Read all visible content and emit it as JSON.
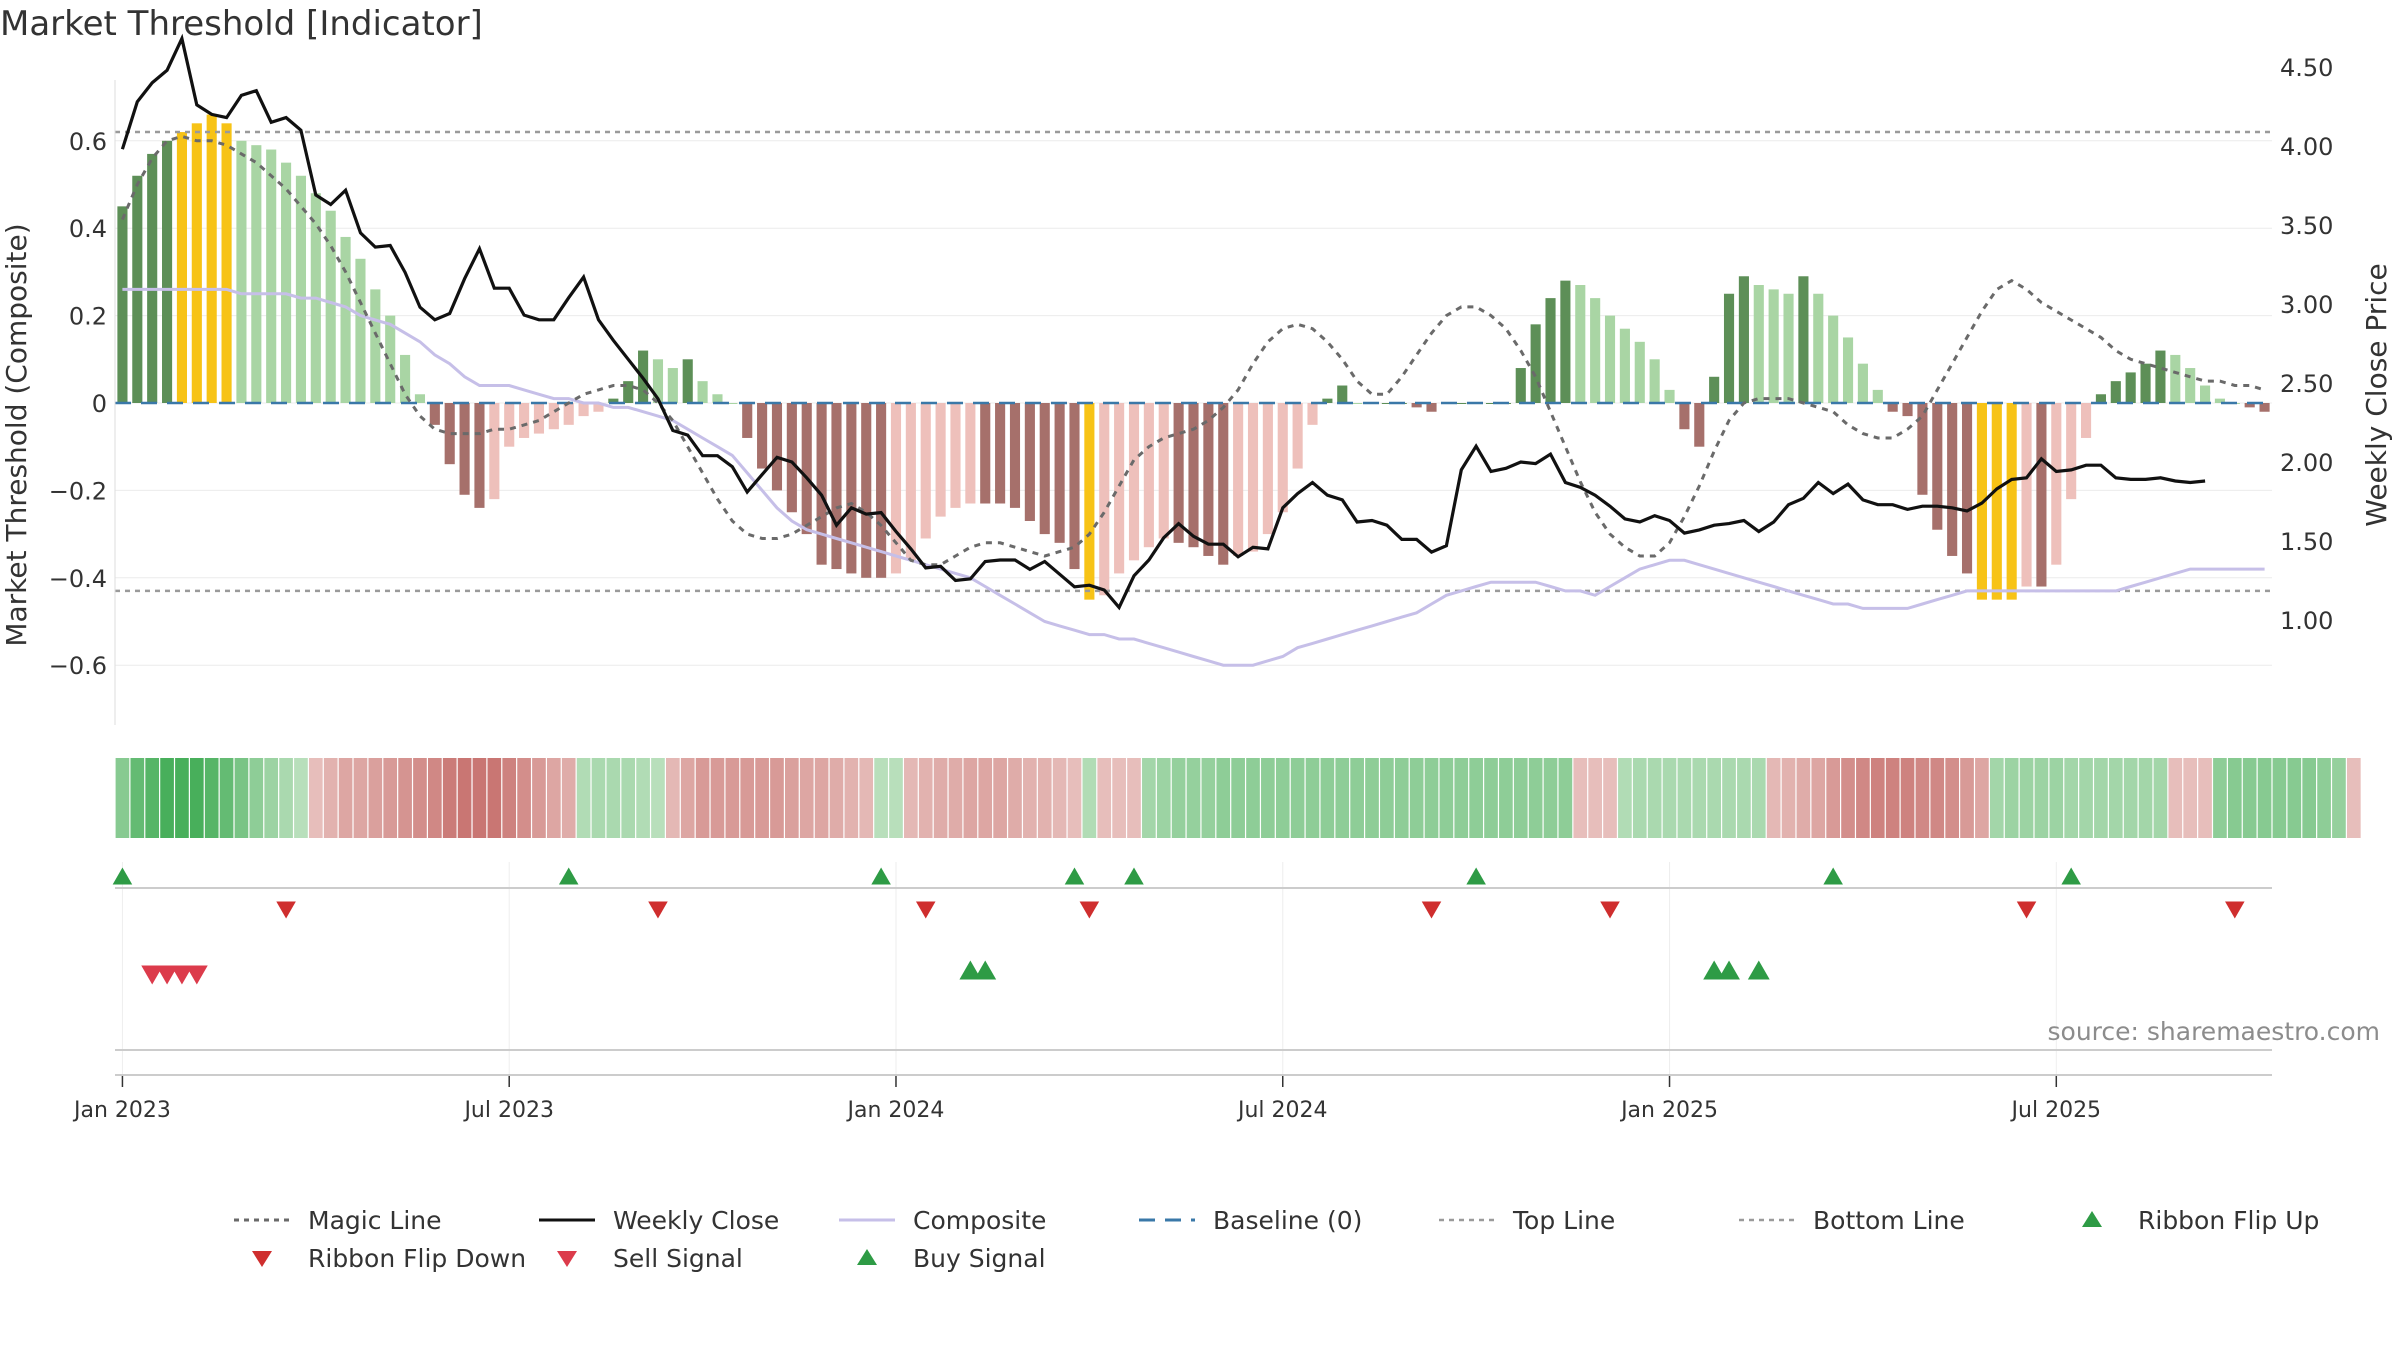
{
  "chart_data": {
    "type": "bar+line",
    "title": "Market Threshold [Indicator]",
    "ylabel_left": "Market Threshold (Composite)",
    "ylabel_right": "Weekly Close Price",
    "source": "source: sharemaestro.com",
    "ylim_left": [
      -0.74,
      0.74
    ],
    "ylim_right": [
      0.85,
      4.85
    ],
    "yticks_left": [
      0.6,
      0.4,
      0.2,
      0,
      -0.2,
      -0.4,
      -0.6
    ],
    "yticks_left_labels": [
      "0.6",
      "0.4",
      "0.2",
      "0",
      "−0.2",
      "−0.4",
      "−0.6"
    ],
    "yticks_right": [
      4.5,
      4.0,
      3.5,
      3.0,
      2.5,
      2.0,
      1.5,
      1.0
    ],
    "yticks_right_labels": [
      "4.50",
      "4.00",
      "3.50",
      "3.00",
      "2.50",
      "2.00",
      "1.50",
      "1.00"
    ],
    "x_tick_labels": [
      "Jan 2023",
      "Jul 2023",
      "Jan 2024",
      "Jul 2024",
      "Jan 2025",
      "Jul 2025"
    ],
    "x_tick_weeks": [
      0,
      26,
      52,
      78,
      104,
      130
    ],
    "n_weeks": 145,
    "first_week_offset": -1,
    "top_line": 0.62,
    "bottom_line": -0.43,
    "composite": [
      0.45,
      0.52,
      0.57,
      0.6,
      0.62,
      0.64,
      0.66,
      0.64,
      0.6,
      0.59,
      0.58,
      0.55,
      0.52,
      0.48,
      0.44,
      0.38,
      0.33,
      0.26,
      0.2,
      0.11,
      0.02,
      -0.05,
      -0.14,
      -0.21,
      -0.24,
      -0.22,
      -0.1,
      -0.08,
      -0.07,
      -0.06,
      -0.05,
      -0.03,
      -0.02,
      0.01,
      0.05,
      0.12,
      0.1,
      0.08,
      0.1,
      0.05,
      0.02,
      0.0,
      -0.08,
      -0.15,
      -0.2,
      -0.25,
      -0.3,
      -0.37,
      -0.38,
      -0.39,
      -0.4,
      -0.4,
      -0.39,
      -0.36,
      -0.31,
      -0.26,
      -0.24,
      -0.23,
      -0.23,
      -0.23,
      -0.24,
      -0.27,
      -0.3,
      -0.32,
      -0.38,
      -0.45,
      -0.44,
      -0.39,
      -0.36,
      -0.33,
      -0.31,
      -0.32,
      -0.33,
      -0.35,
      -0.37,
      -0.35,
      -0.34,
      -0.3,
      -0.25,
      -0.15,
      -0.05,
      0.01,
      0.04,
      0.0,
      0.0,
      0.0,
      0.0,
      -0.01,
      -0.02,
      0.0,
      0.0,
      0.0,
      0.0,
      0.0,
      0.08,
      0.18,
      0.24,
      0.28,
      0.27,
      0.24,
      0.2,
      0.17,
      0.14,
      0.1,
      0.03,
      -0.06,
      -0.1,
      0.06,
      0.25,
      0.29,
      0.27,
      0.26,
      0.25,
      0.29,
      0.25,
      0.2,
      0.15,
      0.09,
      0.03,
      -0.02,
      -0.03,
      -0.21,
      -0.29,
      -0.35,
      -0.39,
      -0.45,
      -0.45,
      -0.45,
      -0.42,
      -0.42,
      -0.37,
      -0.22,
      -0.08,
      0.02,
      0.05,
      0.07,
      0.09,
      0.12,
      0.11,
      0.08,
      0.04,
      0.01,
      0.0,
      -0.01,
      -0.02
    ],
    "bar_colors_seq": "sentinel",
    "weekly_close": [
      3.98,
      4.28,
      4.4,
      4.48,
      4.68,
      4.26,
      4.2,
      4.18,
      4.32,
      4.35,
      4.15,
      4.18,
      4.1,
      3.69,
      3.63,
      3.72,
      3.45,
      3.36,
      3.37,
      3.2,
      2.98,
      2.9,
      2.94,
      3.16,
      3.35,
      3.1,
      3.1,
      2.93,
      2.9,
      2.9,
      3.04,
      3.17,
      2.9,
      2.77,
      2.65,
      2.53,
      2.4,
      2.2,
      2.17,
      2.04,
      2.04,
      1.97,
      1.81,
      1.92,
      2.03,
      2.0,
      1.9,
      1.79,
      1.6,
      1.71,
      1.67,
      1.68,
      1.56,
      1.45,
      1.33,
      1.34,
      1.25,
      1.26,
      1.37,
      1.38,
      1.38,
      1.32,
      1.37,
      1.29,
      1.21,
      1.22,
      1.19,
      1.08,
      1.28,
      1.38,
      1.52,
      1.61,
      1.53,
      1.48,
      1.48,
      1.4,
      1.46,
      1.45,
      1.71,
      1.8,
      1.87,
      1.79,
      1.76,
      1.62,
      1.63,
      1.6,
      1.51,
      1.51,
      1.43,
      1.47,
      1.95,
      2.1,
      1.94,
      1.96,
      2.0,
      1.99,
      2.05,
      1.87,
      1.84,
      1.79,
      1.72,
      1.64,
      1.62,
      1.66,
      1.63,
      1.55,
      1.57,
      1.6,
      1.61,
      1.63,
      1.56,
      1.62,
      1.73,
      1.77,
      1.87,
      1.8,
      1.86,
      1.76,
      1.73,
      1.73,
      1.7,
      1.72,
      1.72,
      1.71,
      1.69,
      1.74,
      1.83,
      1.89,
      1.9,
      2.02,
      1.94,
      1.95,
      1.98,
      1.98,
      1.9,
      1.89,
      1.89,
      1.9,
      1.88,
      1.87,
      1.88
    ],
    "magic_line": [
      0.42,
      0.5,
      0.56,
      0.6,
      0.61,
      0.6,
      0.6,
      0.59,
      0.57,
      0.55,
      0.52,
      0.49,
      0.45,
      0.41,
      0.36,
      0.3,
      0.23,
      0.16,
      0.09,
      0.02,
      -0.03,
      -0.06,
      -0.07,
      -0.07,
      -0.07,
      -0.06,
      -0.06,
      -0.05,
      -0.04,
      -0.02,
      0.0,
      0.02,
      0.03,
      0.04,
      0.04,
      0.03,
      0.0,
      -0.04,
      -0.1,
      -0.16,
      -0.22,
      -0.27,
      -0.3,
      -0.31,
      -0.31,
      -0.3,
      -0.28,
      -0.26,
      -0.24,
      -0.23,
      -0.25,
      -0.28,
      -0.32,
      -0.36,
      -0.37,
      -0.37,
      -0.35,
      -0.33,
      -0.32,
      -0.32,
      -0.33,
      -0.34,
      -0.35,
      -0.34,
      -0.33,
      -0.3,
      -0.25,
      -0.19,
      -0.13,
      -0.1,
      -0.08,
      -0.07,
      -0.06,
      -0.04,
      -0.01,
      0.03,
      0.09,
      0.14,
      0.17,
      0.18,
      0.17,
      0.14,
      0.1,
      0.05,
      0.02,
      0.02,
      0.06,
      0.11,
      0.16,
      0.2,
      0.22,
      0.22,
      0.2,
      0.17,
      0.12,
      0.06,
      -0.02,
      -0.1,
      -0.18,
      -0.25,
      -0.3,
      -0.33,
      -0.35,
      -0.35,
      -0.32,
      -0.26,
      -0.19,
      -0.11,
      -0.04,
      0.0,
      0.01,
      0.01,
      0.01,
      0.0,
      -0.01,
      -0.02,
      -0.05,
      -0.07,
      -0.08,
      -0.08,
      -0.06,
      -0.03,
      0.03,
      0.09,
      0.15,
      0.21,
      0.26,
      0.28,
      0.26,
      0.23,
      0.21,
      0.19,
      0.17,
      0.15,
      0.12,
      0.1,
      0.09,
      0.08,
      0.07,
      0.06,
      0.05,
      0.05,
      0.04,
      0.04,
      0.03
    ],
    "composite_line": [
      0.26,
      0.26,
      0.26,
      0.26,
      0.26,
      0.26,
      0.26,
      0.26,
      0.25,
      0.25,
      0.25,
      0.25,
      0.24,
      0.24,
      0.23,
      0.22,
      0.2,
      0.19,
      0.18,
      0.16,
      0.14,
      0.11,
      0.09,
      0.06,
      0.04,
      0.04,
      0.04,
      0.03,
      0.02,
      0.01,
      0.01,
      0.0,
      0.0,
      -0.01,
      -0.01,
      -0.02,
      -0.03,
      -0.04,
      -0.06,
      -0.08,
      -0.1,
      -0.12,
      -0.16,
      -0.2,
      -0.24,
      -0.27,
      -0.29,
      -0.3,
      -0.31,
      -0.32,
      -0.33,
      -0.34,
      -0.35,
      -0.36,
      -0.37,
      -0.38,
      -0.39,
      -0.4,
      -0.42,
      -0.44,
      -0.46,
      -0.48,
      -0.5,
      -0.51,
      -0.52,
      -0.53,
      -0.53,
      -0.54,
      -0.54,
      -0.55,
      -0.56,
      -0.57,
      -0.58,
      -0.59,
      -0.6,
      -0.6,
      -0.6,
      -0.59,
      -0.58,
      -0.56,
      -0.55,
      -0.54,
      -0.53,
      -0.52,
      -0.51,
      -0.5,
      -0.49,
      -0.48,
      -0.46,
      -0.44,
      -0.43,
      -0.42,
      -0.41,
      -0.41,
      -0.41,
      -0.41,
      -0.42,
      -0.43,
      -0.43,
      -0.44,
      -0.42,
      -0.4,
      -0.38,
      -0.37,
      -0.36,
      -0.36,
      -0.37,
      -0.38,
      -0.39,
      -0.4,
      -0.41,
      -0.42,
      -0.43,
      -0.44,
      -0.45,
      -0.46,
      -0.46,
      -0.47,
      -0.47,
      -0.47,
      -0.47,
      -0.46,
      -0.45,
      -0.44,
      -0.43,
      -0.43,
      -0.43,
      -0.43,
      -0.43,
      -0.43,
      -0.43,
      -0.43,
      -0.43,
      -0.43,
      -0.43,
      -0.42,
      -0.41,
      -0.4,
      -0.39,
      -0.38,
      -0.38,
      -0.38,
      -0.38,
      -0.38,
      -0.38
    ]
  },
  "ribbon_strength": [
    0.5,
    0.75,
    0.85,
    0.95,
    0.95,
    0.95,
    0.85,
    0.75,
    0.6,
    0.45,
    0.35,
    0.25,
    0.15,
    -0.15,
    -0.25,
    -0.35,
    -0.35,
    -0.4,
    -0.45,
    -0.5,
    -0.55,
    -0.6,
    -0.7,
    -0.75,
    -0.75,
    -0.75,
    -0.65,
    -0.55,
    -0.45,
    -0.35,
    -0.3,
    0.2,
    0.25,
    0.25,
    0.25,
    0.2,
    0.15,
    -0.2,
    -0.35,
    -0.45,
    -0.45,
    -0.45,
    -0.45,
    -0.45,
    -0.45,
    -0.4,
    -0.35,
    -0.35,
    -0.3,
    -0.25,
    -0.2,
    0.15,
    0.15,
    -0.2,
    -0.25,
    -0.3,
    -0.3,
    -0.35,
    -0.35,
    -0.35,
    -0.3,
    -0.25,
    -0.25,
    -0.2,
    -0.15,
    0.2,
    -0.15,
    -0.15,
    -0.15,
    0.3,
    0.35,
    0.4,
    0.4,
    0.4,
    0.45,
    0.45,
    0.45,
    0.45,
    0.45,
    0.45,
    0.45,
    0.45,
    0.45,
    0.45,
    0.45,
    0.45,
    0.45,
    0.45,
    0.45,
    0.45,
    0.45,
    0.45,
    0.45,
    0.45,
    0.45,
    0.45,
    0.45,
    0.45,
    -0.15,
    -0.15,
    -0.15,
    0.2,
    0.25,
    0.25,
    0.25,
    0.25,
    0.25,
    0.25,
    0.25,
    0.25,
    0.25,
    -0.2,
    -0.25,
    -0.3,
    -0.35,
    -0.45,
    -0.55,
    -0.6,
    -0.65,
    -0.65,
    -0.65,
    -0.6,
    -0.6,
    -0.55,
    -0.45,
    -0.35,
    0.3,
    0.35,
    0.35,
    0.35,
    0.35,
    0.3,
    0.3,
    0.3,
    0.3,
    0.3,
    0.3,
    0.3,
    -0.15,
    -0.15,
    -0.15,
    0.45,
    0.5,
    0.5,
    0.5,
    0.5,
    0.5,
    0.5,
    0.45,
    0.4,
    -0.15
  ],
  "ribbon_flip_up_weeks": [
    0,
    30,
    51,
    64,
    68,
    91,
    115,
    131
  ],
  "ribbon_flip_down_weeks": [
    11,
    36,
    54,
    65,
    88,
    100,
    128,
    142
  ],
  "sell_signal_weeks": [
    2,
    3,
    4,
    5
  ],
  "buy_signal_weeks": [
    57,
    58,
    107,
    108,
    110
  ],
  "legend": [
    {
      "key": "magic",
      "label": "Magic Line"
    },
    {
      "key": "close",
      "label": "Weekly Close"
    },
    {
      "key": "composite",
      "label": "Composite"
    },
    {
      "key": "baseline",
      "label": "Baseline (0)"
    },
    {
      "key": "top",
      "label": "Top Line"
    },
    {
      "key": "bottom",
      "label": "Bottom Line"
    },
    {
      "key": "flipup",
      "label": "Ribbon Flip Up"
    },
    {
      "key": "flipdown",
      "label": "Ribbon Flip Down"
    },
    {
      "key": "sell",
      "label": "Sell Signal"
    },
    {
      "key": "buy",
      "label": "Buy Signal"
    }
  ],
  "colors": {
    "pos_light": "#a9d5a4",
    "pos_dark": "#5d8f57",
    "neg_light": "#eec0bb",
    "neg_dark": "#a6706b",
    "extreme": "#f7c316",
    "close_line": "#111111",
    "magic_line": "#6a6a6a",
    "composite_line": "#c6bfe8",
    "baseline": "#3a78a8",
    "threshold_line": "#9a9a9a",
    "flip_up": "#2e9b45",
    "flip_down": "#cf2e2e",
    "sell": "#dc3b4b",
    "buy": "#2e9b45"
  }
}
